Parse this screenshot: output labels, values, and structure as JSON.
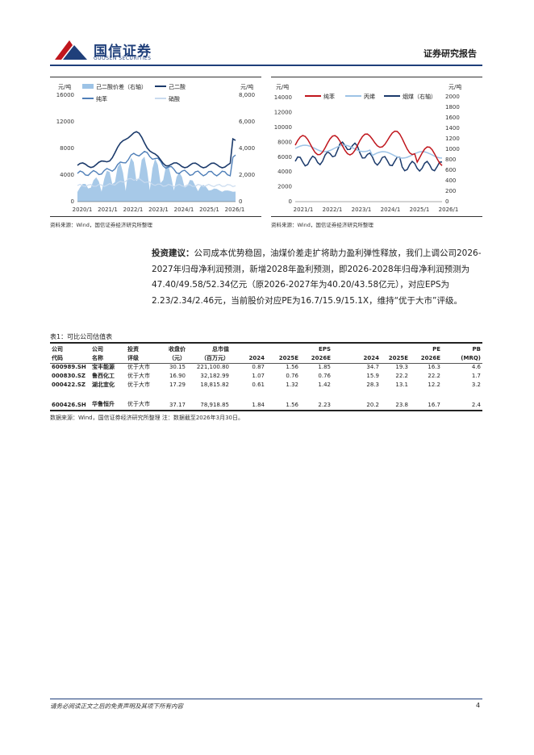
{
  "header": {
    "logo_cn": "国信证券",
    "logo_en": "GUOSEN SECURITIES",
    "doc_type": "证券研究报告"
  },
  "chart1": {
    "unit_left": "元/吨",
    "unit_right": "元/吨",
    "legend": [
      "己二酸价差（右轴）",
      "己二酸",
      "纯苯",
      "硝酸"
    ],
    "y_left_ticks": [
      "0",
      "4000",
      "8000",
      "12000",
      "16000"
    ],
    "y_right_ticks": [
      "0",
      "2,000",
      "4,000",
      "6,000",
      "8,000"
    ],
    "x_ticks": [
      "2020/1",
      "2021/1",
      "2022/1",
      "2023/1",
      "2024/1",
      "2025/1",
      "2026/1"
    ],
    "source": "资料来源：Wind，国信证券经济研究所整理"
  },
  "chart2": {
    "unit_left": "元/吨",
    "unit_right": "元/吨",
    "legend": [
      "纯苯",
      "丙烯",
      "烟煤（右轴）"
    ],
    "y_left_ticks": [
      "0",
      "2000",
      "4000",
      "6000",
      "8000",
      "10000",
      "12000",
      "14000"
    ],
    "y_right_ticks": [
      "0",
      "200",
      "400",
      "600",
      "800",
      "1000",
      "1200",
      "1400",
      "1600",
      "1800",
      "2000"
    ],
    "x_ticks": [
      "2021/1",
      "2022/1",
      "2023/1",
      "2024/1",
      "2025/1",
      "2026/1"
    ],
    "source": "资料来源：Wind，国信证券经济研究所整理"
  },
  "advice": {
    "label": "投资建议：",
    "text": "公司成本优势稳固，油煤价差走扩将助力盈利弹性释放，我们上调公司2026-2027年归母净利润预测，新增2028年盈利预测，即2026-2028年归母净利润预测为47.40/49.58/52.34亿元（原2026-2027年为40.20/43.58亿元），对应EPS为2.23/2.34/2.46元，当前股价对应PE为16.7/15.9/15.1X，维持“优于大市”评级。"
  },
  "table": {
    "title": "表1：可比公司估值表",
    "headers": {
      "code": [
        "公司",
        "代码"
      ],
      "name": [
        "公司",
        "名称"
      ],
      "rating": [
        "投资",
        "评级"
      ],
      "price": [
        "收盘价",
        "（元）"
      ],
      "mcap": [
        "总市值",
        "（百万元）"
      ],
      "eps": "EPS",
      "pe": "PE",
      "pb": "PB",
      "pb_sub": "(MRQ)",
      "years": [
        "2024",
        "2025E",
        "2026E"
      ]
    },
    "rows": [
      {
        "code": "600989.SH",
        "name": "宝丰能源",
        "rating": "优于大市",
        "price": "30.15",
        "mcap": "221,100.80",
        "eps": [
          "0.87",
          "1.56",
          "1.85"
        ],
        "pe": [
          "34.7",
          "19.3",
          "16.3"
        ],
        "pb": "4.6"
      },
      {
        "code": "000830.SZ",
        "name": "鲁西化工",
        "rating": "优于大市",
        "price": "16.90",
        "mcap": "32,182.99",
        "eps": [
          "1.07",
          "0.76",
          "0.76"
        ],
        "pe": [
          "15.9",
          "22.2",
          "22.2"
        ],
        "pb": "1.7"
      },
      {
        "code": "000422.SZ",
        "name": "湖北宜化",
        "rating": "优于大市",
        "price": "17.29",
        "mcap": "18,815.82",
        "eps": [
          "0.61",
          "1.32",
          "1.42"
        ],
        "pe": [
          "28.3",
          "13.1",
          "12.2"
        ],
        "pb": "3.2"
      },
      {
        "code": "600426.SH",
        "name": "华鲁恒升",
        "rating": "优于大市",
        "price": "37.17",
        "mcap": "78,918.85",
        "eps": [
          "1.84",
          "1.56",
          "2.23"
        ],
        "pe": [
          "20.2",
          "23.8",
          "16.7"
        ],
        "pb": "2.4"
      }
    ],
    "note": "数据来源：Wind，国信证券经济研究所整理  注：数据截至2026年3月30日。"
  },
  "footer": {
    "disclaimer": "请务必阅读正文之后的免责声明及其项下所有内容",
    "page": "4"
  },
  "colors": {
    "brand": "#1f3f7a",
    "red": "#c0161d",
    "navy": "#1b3a6b",
    "mid_blue": "#4f7fb8",
    "light_blue": "#9dc3e6",
    "pale": "#c9dbef"
  }
}
